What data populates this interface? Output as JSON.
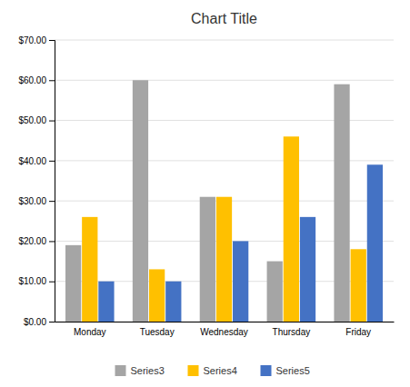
{
  "chart_data": {
    "type": "bar",
    "title": "Chart Title",
    "categories": [
      "Monday",
      "Tuesday",
      "Wednesday",
      "Thursday",
      "Friday"
    ],
    "series": [
      {
        "name": "Series3",
        "color": "#a5a5a5",
        "values": [
          19,
          60,
          31,
          15,
          59
        ]
      },
      {
        "name": "Series4",
        "color": "#ffc000",
        "values": [
          26,
          13,
          31,
          46,
          18
        ]
      },
      {
        "name": "Series5",
        "color": "#4472c4",
        "values": [
          10,
          10,
          20,
          26,
          39
        ]
      }
    ],
    "ylim": [
      0,
      70
    ],
    "yticks": [
      {
        "value": 0,
        "label": "$0.00"
      },
      {
        "value": 10,
        "label": "$10.00"
      },
      {
        "value": 20,
        "label": "$20.00"
      },
      {
        "value": 30,
        "label": "$30.00"
      },
      {
        "value": 40,
        "label": "$40.00"
      },
      {
        "value": 50,
        "label": "$50.00"
      },
      {
        "value": 60,
        "label": "$60.00"
      },
      {
        "value": 70,
        "label": "$70.00"
      }
    ],
    "grid": true,
    "legend": "bottom"
  }
}
